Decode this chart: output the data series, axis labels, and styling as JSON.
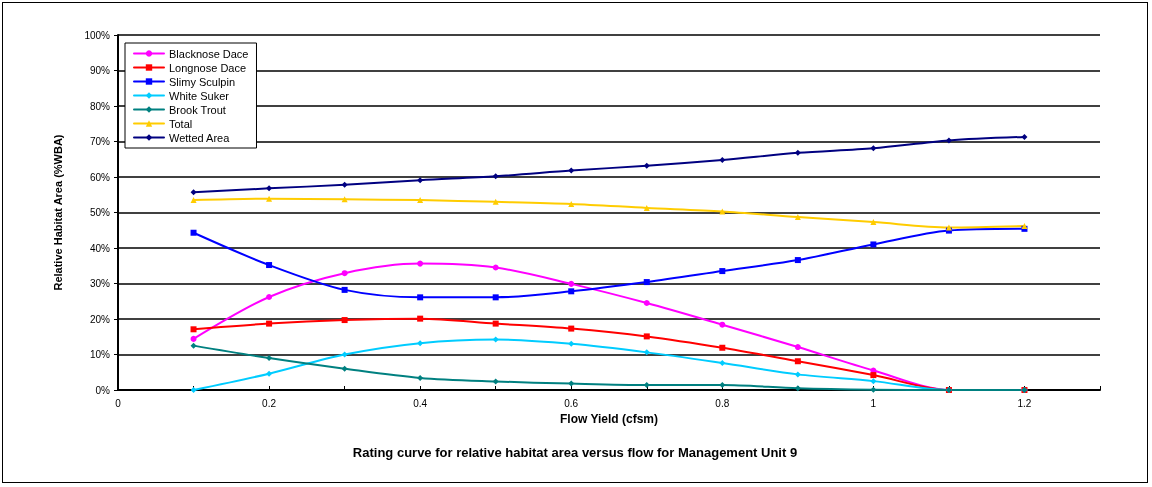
{
  "chart_data": {
    "type": "line",
    "title": "Rating curve for relative habitat area versus flow for Management Unit 9",
    "xlabel": "Flow Yield (cfsm)",
    "ylabel": "Relative Habitat Area (%WBA)",
    "x": [
      0.1,
      0.2,
      0.3,
      0.4,
      0.5,
      0.6,
      0.7,
      0.8,
      0.9,
      1,
      1.1,
      1.2
    ],
    "series": [
      {
        "name": "Blacknose Dace",
        "color": "#ff00ff",
        "marker": "circle",
        "values": [
          14.4,
          26.2,
          32.9,
          35.6,
          34.5,
          29.9,
          24.5,
          18.4,
          12.1,
          5.5,
          0,
          0
        ]
      },
      {
        "name": "Longnose Dace",
        "color": "#ff0000",
        "marker": "square",
        "values": [
          17.1,
          18.7,
          19.7,
          20.1,
          18.7,
          17.3,
          15.1,
          11.9,
          8.1,
          4.2,
          0,
          0
        ]
      },
      {
        "name": "Slimy Sculpin",
        "color": "#0000ff",
        "marker": "square",
        "values": [
          44.3,
          35.2,
          28.2,
          26.1,
          26.1,
          27.8,
          30.4,
          33.5,
          36.6,
          41.0,
          44.9,
          45.4
        ]
      },
      {
        "name": "White Suker",
        "color": "#00ccff",
        "marker": "diamond",
        "values": [
          0,
          4.6,
          10.0,
          13.2,
          14.2,
          13.0,
          10.6,
          7.6,
          4.4,
          2.5,
          0,
          0
        ]
      },
      {
        "name": "Brook Trout",
        "color": "#008080",
        "marker": "diamond",
        "values": [
          12.5,
          9.0,
          6.0,
          3.4,
          2.4,
          1.8,
          1.4,
          1.4,
          0.5,
          0.1,
          0,
          0
        ]
      },
      {
        "name": "Total",
        "color": "#ffcc00",
        "marker": "triangle",
        "values": [
          53.5,
          53.9,
          53.7,
          53.5,
          53.0,
          52.4,
          51.3,
          50.3,
          48.7,
          47.3,
          45.8,
          46.2
        ]
      },
      {
        "name": "Wetted Area",
        "color": "#000080",
        "marker": "diamond",
        "values": [
          55.7,
          56.8,
          57.8,
          59.1,
          60.2,
          61.8,
          63.2,
          64.8,
          66.8,
          68.1,
          70.3,
          71.3
        ]
      }
    ],
    "xlim": [
      0,
      1.3
    ],
    "xticks": [
      0,
      {
        "value": 0.1,
        "label": null
      },
      0.2,
      {
        "value": 0.3,
        "label": null
      },
      0.4,
      {
        "value": 0.5,
        "label": null
      },
      0.6,
      {
        "value": 0.7,
        "label": null
      },
      0.8,
      {
        "value": 0.9,
        "label": null
      },
      1,
      {
        "value": 1.1,
        "label": null
      },
      1.2,
      {
        "value": 1.3,
        "label": null
      }
    ],
    "ylim": [
      0,
      100
    ],
    "yticks": [
      {
        "value": 0,
        "label": "0%"
      },
      {
        "value": 10,
        "label": "10%"
      },
      {
        "value": 20,
        "label": "20%"
      },
      {
        "value": 30,
        "label": "30%"
      },
      {
        "value": 40,
        "label": "40%"
      },
      {
        "value": 50,
        "label": "50%"
      },
      {
        "value": 60,
        "label": "60%"
      },
      {
        "value": 70,
        "label": "70%"
      },
      {
        "value": 80,
        "label": "80%"
      },
      {
        "value": 90,
        "label": "90%"
      },
      {
        "value": 100,
        "label": "100%"
      }
    ],
    "grid": "y",
    "legend": "top left",
    "line_style": "solid"
  }
}
